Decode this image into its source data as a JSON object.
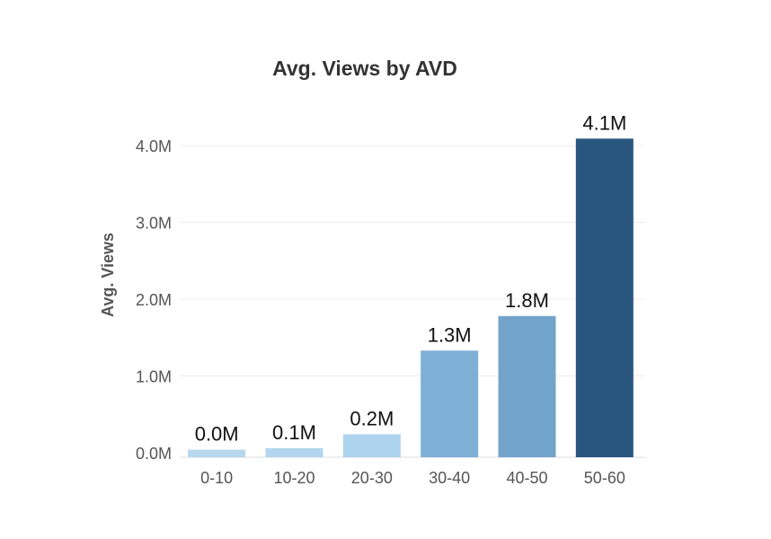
{
  "chart_data": {
    "type": "bar",
    "title": "Avg. Views by AVD",
    "xlabel": "",
    "ylabel": "Avg. Views",
    "categories": [
      "0-10",
      "10-20",
      "20-30",
      "30-40",
      "40-50",
      "50-60"
    ],
    "values": [
      0.04,
      0.06,
      0.24,
      1.33,
      1.78,
      4.09
    ],
    "data_labels": [
      "0.0M",
      "0.1M",
      "0.2M",
      "1.3M",
      "1.8M",
      "4.1M"
    ],
    "colors": [
      "#b6d7ee",
      "#b3d5ee",
      "#aed3ee",
      "#7eb0d6",
      "#72a4cb",
      "#29567f"
    ],
    "yticks": [
      0,
      1,
      2,
      3,
      4
    ],
    "ytick_labels": [
      "0.0M",
      "1.0M",
      "2.0M",
      "3.0M",
      "4.0M"
    ],
    "ylim": [
      0,
      4.1
    ],
    "grid": true,
    "legend": "none"
  }
}
